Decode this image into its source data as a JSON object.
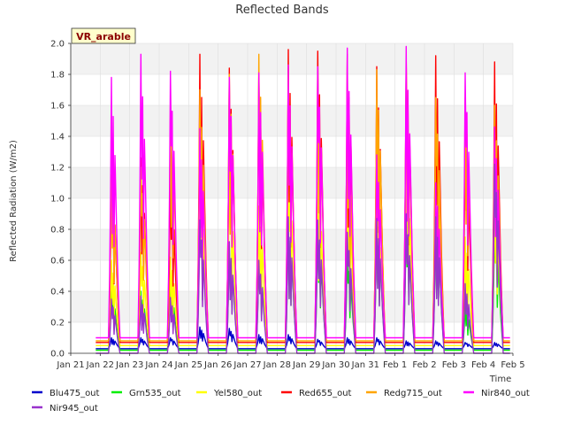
{
  "chart_data": {
    "type": "line",
    "title": "Reflected Bands",
    "xlabel": "Time",
    "ylabel": "Reflected Radiation (W/m2)",
    "badge": "VR_arable",
    "ylim": [
      0.0,
      2.0
    ],
    "yticks": [
      "0.0",
      "0.2",
      "0.4",
      "0.6",
      "0.8",
      "1.0",
      "1.2",
      "1.4",
      "1.6",
      "1.8",
      "2.0"
    ],
    "xlim": [
      0,
      15
    ],
    "xticks": [
      "Jan 21",
      "Jan 22",
      "Jan 23",
      "Jan 24",
      "Jan 25",
      "Jan 26",
      "Jan 27",
      "Jan 28",
      "Jan 29",
      "Jan 30",
      "Jan 31",
      "Feb 1",
      "Feb 2",
      "Feb 3",
      "Feb 4",
      "Feb 5"
    ],
    "grid": true,
    "legend_position": "bottom",
    "series": [
      {
        "name": "Blu475_out",
        "color": "#0000cc",
        "night": 0.03,
        "dip": 0.0,
        "peaks": [
          0.1,
          0.1,
          0.1,
          0.17,
          0.16,
          0.12,
          0.12,
          0.09,
          0.1,
          0.1,
          0.08,
          0.08,
          0.07,
          0.07
        ]
      },
      {
        "name": "Grn535_out",
        "color": "#00ee00",
        "night": 0.02,
        "dip": 0.0,
        "peaks": [
          0.4,
          0.4,
          0.41,
          0.94,
          0.7,
          0.6,
          0.85,
          0.8,
          0.62,
          0.85,
          0.86,
          0.86,
          0.3,
          0.81
        ]
      },
      {
        "name": "Yel580_out",
        "color": "#ffff00",
        "night": 0.05,
        "dip": 0.0,
        "peaks": [
          0.6,
          0.65,
          0.62,
          1.12,
          1.1,
          0.95,
          1.2,
          1.1,
          1.12,
          0.95,
          1.22,
          1.25,
          0.75,
          1.0
        ]
      },
      {
        "name": "Red655_out",
        "color": "#ff0000",
        "night": 0.07,
        "dip": 0.0,
        "peaks": [
          1.15,
          1.26,
          1.11,
          1.93,
          1.84,
          1.8,
          1.96,
          1.95,
          1.93,
          1.85,
          1.89,
          1.92,
          1.4,
          1.88
        ]
      },
      {
        "name": "Redg715_out",
        "color": "#ffa500",
        "night": 0.08,
        "dip": 0.0,
        "peaks": [
          1.15,
          1.2,
          1.61,
          1.7,
          1.8,
          1.93,
          1.81,
          1.8,
          1.42,
          1.83,
          1.85,
          1.65,
          1.65,
          1.6
        ]
      },
      {
        "name": "Nir840_out",
        "color": "#ff00ff",
        "night": 0.1,
        "dip": 0.0,
        "peaks": [
          1.78,
          1.93,
          1.82,
          1.45,
          1.78,
          1.81,
          1.86,
          1.85,
          1.97,
          1.28,
          1.98,
          1.1,
          1.81,
          1.46
        ]
      },
      {
        "name": "Nir945_out",
        "color": "#9932cc",
        "night": 0.0,
        "dip": 0.0,
        "peaks": [
          0.35,
          0.37,
          0.36,
          0.86,
          0.72,
          0.6,
          0.88,
          0.86,
          0.78,
          0.87,
          0.9,
          0.88,
          0.45,
          1.22
        ]
      }
    ]
  }
}
